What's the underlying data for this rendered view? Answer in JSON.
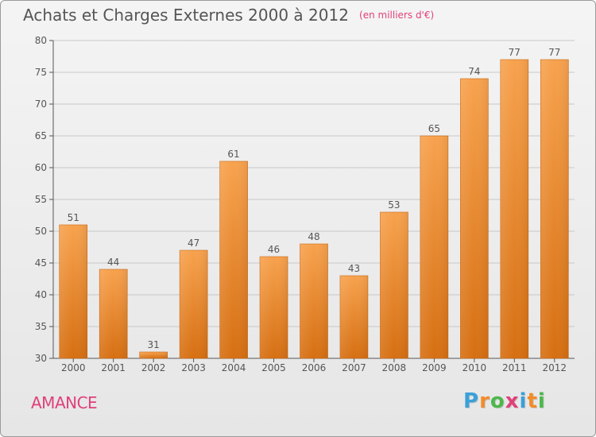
{
  "header": {
    "title": "Achats et Charges Externes 2000 à 2012",
    "unit": "(en milliers d'€)"
  },
  "footer": {
    "commune": "AMANCE",
    "brand_letters": [
      "P",
      "r",
      "o",
      "x",
      "i",
      "t",
      "i"
    ],
    "brand_colors": [
      "#3aa0d8",
      "#f28c28",
      "#4bb84b",
      "#e0407a",
      "#3aa0d8",
      "#f28c28",
      "#4bb84b"
    ]
  },
  "colors": {
    "bar_top": "#f7a24e",
    "bar_bottom": "#d66f12",
    "grid": "#c8c8c8",
    "axis": "#555555",
    "label": "#555555",
    "accent": "#e0407a"
  },
  "chart_data": {
    "type": "bar",
    "title": "Achats et Charges Externes 2000 à 2012",
    "subtitle": "(en milliers d'€)",
    "categories": [
      "2000",
      "2001",
      "2002",
      "2003",
      "2004",
      "2005",
      "2006",
      "2007",
      "2008",
      "2009",
      "2010",
      "2011",
      "2012"
    ],
    "values": [
      51,
      44,
      31,
      47,
      61,
      46,
      48,
      43,
      53,
      65,
      74,
      77,
      77
    ],
    "yticks": [
      30,
      35,
      40,
      45,
      50,
      55,
      60,
      65,
      70,
      75,
      80
    ],
    "ylim": [
      30,
      80
    ],
    "xlabel": "",
    "ylabel": "",
    "grid": true,
    "data_labels": true
  }
}
